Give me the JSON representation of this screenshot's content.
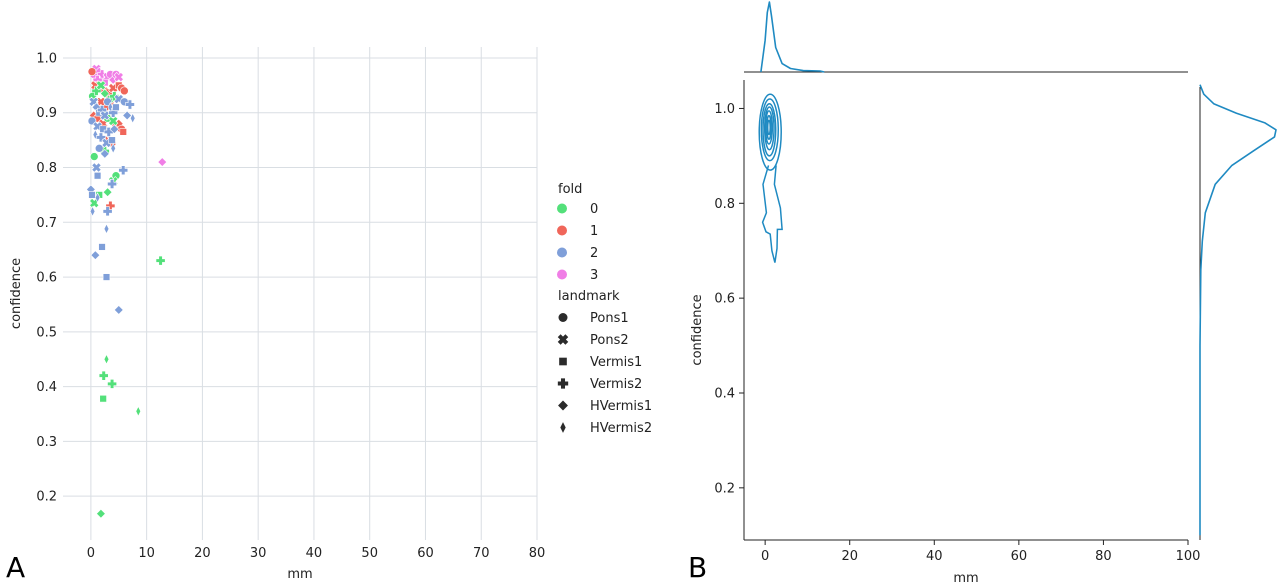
{
  "panels": {
    "a_letter": "A",
    "b_letter": "B"
  },
  "chart_data": [
    {
      "type": "scatter",
      "title": "",
      "xlabel": "mm",
      "ylabel": "confidence",
      "xlim": [
        -5,
        80
      ],
      "ylim": [
        0.12,
        1.02
      ],
      "xticks": [
        0,
        10,
        20,
        30,
        40,
        50,
        60,
        70,
        80
      ],
      "yticks": [
        0.2,
        0.3,
        0.4,
        0.5,
        0.6,
        0.7,
        0.8,
        0.9,
        1.0
      ],
      "grid": true,
      "legend": {
        "placement": "right",
        "hue_title": "fold",
        "hue_items": [
          {
            "label": "0",
            "color": "#53e07a"
          },
          {
            "label": "1",
            "color": "#f0665a"
          },
          {
            "label": "2",
            "color": "#7f9fd9"
          },
          {
            "label": "3",
            "color": "#f07ee6"
          }
        ],
        "style_title": "landmark",
        "style_items": [
          {
            "label": "Pons1",
            "marker": "circle"
          },
          {
            "label": "Pons2",
            "marker": "x"
          },
          {
            "label": "Vermis1",
            "marker": "square"
          },
          {
            "label": "Vermis2",
            "marker": "plus"
          },
          {
            "label": "HVermis1",
            "marker": "diamond"
          },
          {
            "label": "HVermis2",
            "marker": "thin-diamond"
          }
        ]
      },
      "points": [
        {
          "x": 0.5,
          "y": 0.97,
          "fold": 3,
          "lm": "circle"
        },
        {
          "x": 1.0,
          "y": 0.98,
          "fold": 3,
          "lm": "x"
        },
        {
          "x": 1.5,
          "y": 0.975,
          "fold": 3,
          "lm": "diamond"
        },
        {
          "x": 2.0,
          "y": 0.97,
          "fold": 3,
          "lm": "plus"
        },
        {
          "x": 3.0,
          "y": 0.965,
          "fold": 3,
          "lm": "x"
        },
        {
          "x": 3.5,
          "y": 0.97,
          "fold": 3,
          "lm": "circle"
        },
        {
          "x": 4.0,
          "y": 0.96,
          "fold": 3,
          "lm": "diamond"
        },
        {
          "x": 4.5,
          "y": 0.97,
          "fold": 3,
          "lm": "circle"
        },
        {
          "x": 5.0,
          "y": 0.965,
          "fold": 3,
          "lm": "x"
        },
        {
          "x": 2.5,
          "y": 0.955,
          "fold": 3,
          "lm": "square"
        },
        {
          "x": 1.2,
          "y": 0.96,
          "fold": 3,
          "lm": "plus"
        },
        {
          "x": 0.2,
          "y": 0.975,
          "fold": 1,
          "lm": "circle"
        },
        {
          "x": 0.8,
          "y": 0.95,
          "fold": 1,
          "lm": "x"
        },
        {
          "x": 1.5,
          "y": 0.945,
          "fold": 1,
          "lm": "diamond"
        },
        {
          "x": 2.5,
          "y": 0.94,
          "fold": 1,
          "lm": "circle"
        },
        {
          "x": 3.0,
          "y": 0.935,
          "fold": 1,
          "lm": "plus"
        },
        {
          "x": 4.0,
          "y": 0.945,
          "fold": 1,
          "lm": "x"
        },
        {
          "x": 5.0,
          "y": 0.95,
          "fold": 1,
          "lm": "square"
        },
        {
          "x": 5.5,
          "y": 0.945,
          "fold": 1,
          "lm": "circle"
        },
        {
          "x": 6.0,
          "y": 0.94,
          "fold": 1,
          "lm": "circle"
        },
        {
          "x": 1.8,
          "y": 0.92,
          "fold": 1,
          "lm": "x"
        },
        {
          "x": 2.8,
          "y": 0.91,
          "fold": 1,
          "lm": "diamond"
        },
        {
          "x": 3.5,
          "y": 0.92,
          "fold": 1,
          "lm": "square"
        },
        {
          "x": 0.5,
          "y": 0.895,
          "fold": 1,
          "lm": "diamond"
        },
        {
          "x": 1.2,
          "y": 0.89,
          "fold": 1,
          "lm": "circle"
        },
        {
          "x": 2.2,
          "y": 0.88,
          "fold": 1,
          "lm": "x"
        },
        {
          "x": 4.5,
          "y": 0.875,
          "fold": 1,
          "lm": "circle"
        },
        {
          "x": 5.0,
          "y": 0.88,
          "fold": 1,
          "lm": "diamond"
        },
        {
          "x": 5.5,
          "y": 0.87,
          "fold": 1,
          "lm": "circle"
        },
        {
          "x": 5.8,
          "y": 0.865,
          "fold": 1,
          "lm": "square"
        },
        {
          "x": 3.0,
          "y": 0.85,
          "fold": 1,
          "lm": "x"
        },
        {
          "x": 3.8,
          "y": 0.845,
          "fold": 1,
          "lm": "circle"
        },
        {
          "x": 3.5,
          "y": 0.73,
          "fold": 1,
          "lm": "plus"
        },
        {
          "x": 0.3,
          "y": 0.93,
          "fold": 0,
          "lm": "circle"
        },
        {
          "x": 1.0,
          "y": 0.94,
          "fold": 0,
          "lm": "plus"
        },
        {
          "x": 1.8,
          "y": 0.95,
          "fold": 0,
          "lm": "x"
        },
        {
          "x": 2.5,
          "y": 0.935,
          "fold": 0,
          "lm": "diamond"
        },
        {
          "x": 3.5,
          "y": 0.925,
          "fold": 0,
          "lm": "circle"
        },
        {
          "x": 4.2,
          "y": 0.93,
          "fold": 0,
          "lm": "plus"
        },
        {
          "x": 2.0,
          "y": 0.9,
          "fold": 0,
          "lm": "square"
        },
        {
          "x": 3.0,
          "y": 0.89,
          "fold": 0,
          "lm": "circle"
        },
        {
          "x": 4.0,
          "y": 0.885,
          "fold": 0,
          "lm": "x"
        },
        {
          "x": 0.6,
          "y": 0.82,
          "fold": 0,
          "lm": "circle"
        },
        {
          "x": 1.5,
          "y": 0.835,
          "fold": 0,
          "lm": "diamond"
        },
        {
          "x": 2.5,
          "y": 0.83,
          "fold": 0,
          "lm": "plus"
        },
        {
          "x": 4.5,
          "y": 0.785,
          "fold": 0,
          "lm": "circle"
        },
        {
          "x": 4.0,
          "y": 0.775,
          "fold": 0,
          "lm": "x"
        },
        {
          "x": 1.5,
          "y": 0.75,
          "fold": 0,
          "lm": "square"
        },
        {
          "x": 3.0,
          "y": 0.755,
          "fold": 0,
          "lm": "diamond"
        },
        {
          "x": 0.6,
          "y": 0.735,
          "fold": 0,
          "lm": "x"
        },
        {
          "x": 12.5,
          "y": 0.63,
          "fold": 0,
          "lm": "plus"
        },
        {
          "x": 2.8,
          "y": 0.45,
          "fold": 0,
          "lm": "thin-diamond"
        },
        {
          "x": 2.3,
          "y": 0.42,
          "fold": 0,
          "lm": "plus"
        },
        {
          "x": 3.8,
          "y": 0.405,
          "fold": 0,
          "lm": "plus"
        },
        {
          "x": 2.2,
          "y": 0.378,
          "fold": 0,
          "lm": "square"
        },
        {
          "x": 8.5,
          "y": 0.355,
          "fold": 0,
          "lm": "thin-diamond"
        },
        {
          "x": 1.8,
          "y": 0.168,
          "fold": 0,
          "lm": "diamond"
        },
        {
          "x": 0.5,
          "y": 0.92,
          "fold": 2,
          "lm": "x"
        },
        {
          "x": 1.0,
          "y": 0.91,
          "fold": 2,
          "lm": "diamond"
        },
        {
          "x": 1.5,
          "y": 0.9,
          "fold": 2,
          "lm": "square"
        },
        {
          "x": 2.0,
          "y": 0.905,
          "fold": 2,
          "lm": "plus"
        },
        {
          "x": 2.5,
          "y": 0.895,
          "fold": 2,
          "lm": "x"
        },
        {
          "x": 3.0,
          "y": 0.92,
          "fold": 2,
          "lm": "circle"
        },
        {
          "x": 3.5,
          "y": 0.91,
          "fold": 2,
          "lm": "thin-diamond"
        },
        {
          "x": 4.0,
          "y": 0.9,
          "fold": 2,
          "lm": "plus"
        },
        {
          "x": 4.5,
          "y": 0.91,
          "fold": 2,
          "lm": "square"
        },
        {
          "x": 5.0,
          "y": 0.925,
          "fold": 2,
          "lm": "x"
        },
        {
          "x": 6.0,
          "y": 0.92,
          "fold": 2,
          "lm": "circle"
        },
        {
          "x": 7.0,
          "y": 0.915,
          "fold": 2,
          "lm": "plus"
        },
        {
          "x": 6.5,
          "y": 0.895,
          "fold": 2,
          "lm": "diamond"
        },
        {
          "x": 7.5,
          "y": 0.89,
          "fold": 2,
          "lm": "thin-diamond"
        },
        {
          "x": 0.2,
          "y": 0.885,
          "fold": 2,
          "lm": "circle"
        },
        {
          "x": 1.2,
          "y": 0.875,
          "fold": 2,
          "lm": "x"
        },
        {
          "x": 2.2,
          "y": 0.87,
          "fold": 2,
          "lm": "square"
        },
        {
          "x": 3.2,
          "y": 0.865,
          "fold": 2,
          "lm": "plus"
        },
        {
          "x": 4.2,
          "y": 0.87,
          "fold": 2,
          "lm": "diamond"
        },
        {
          "x": 0.8,
          "y": 0.86,
          "fold": 2,
          "lm": "thin-diamond"
        },
        {
          "x": 1.8,
          "y": 0.855,
          "fold": 2,
          "lm": "plus"
        },
        {
          "x": 2.8,
          "y": 0.845,
          "fold": 2,
          "lm": "x"
        },
        {
          "x": 3.8,
          "y": 0.85,
          "fold": 2,
          "lm": "square"
        },
        {
          "x": 1.5,
          "y": 0.835,
          "fold": 2,
          "lm": "circle"
        },
        {
          "x": 2.5,
          "y": 0.825,
          "fold": 2,
          "lm": "diamond"
        },
        {
          "x": 4.0,
          "y": 0.835,
          "fold": 2,
          "lm": "thin-diamond"
        },
        {
          "x": 1.0,
          "y": 0.8,
          "fold": 2,
          "lm": "x"
        },
        {
          "x": 1.2,
          "y": 0.785,
          "fold": 2,
          "lm": "square"
        },
        {
          "x": 5.8,
          "y": 0.795,
          "fold": 2,
          "lm": "plus"
        },
        {
          "x": 3.8,
          "y": 0.77,
          "fold": 2,
          "lm": "plus"
        },
        {
          "x": 0.0,
          "y": 0.76,
          "fold": 2,
          "lm": "diamond"
        },
        {
          "x": 0.2,
          "y": 0.75,
          "fold": 2,
          "lm": "square"
        },
        {
          "x": 1.2,
          "y": 0.745,
          "fold": 2,
          "lm": "thin-diamond"
        },
        {
          "x": 3.0,
          "y": 0.72,
          "fold": 2,
          "lm": "plus"
        },
        {
          "x": 0.3,
          "y": 0.72,
          "fold": 2,
          "lm": "thin-diamond"
        },
        {
          "x": 2.8,
          "y": 0.688,
          "fold": 2,
          "lm": "thin-diamond"
        },
        {
          "x": 2.0,
          "y": 0.655,
          "fold": 2,
          "lm": "square"
        },
        {
          "x": 0.8,
          "y": 0.64,
          "fold": 2,
          "lm": "diamond"
        },
        {
          "x": 2.8,
          "y": 0.6,
          "fold": 2,
          "lm": "square"
        },
        {
          "x": 5.0,
          "y": 0.54,
          "fold": 2,
          "lm": "diamond"
        },
        {
          "x": 12.8,
          "y": 0.81,
          "fold": 3,
          "lm": "diamond"
        }
      ]
    },
    {
      "type": "kde-joint",
      "title": "",
      "xlabel": "mm",
      "ylabel": "confidence",
      "xlim": [
        -5,
        100
      ],
      "ylim": [
        0.09,
        1.06
      ],
      "xticks": [
        0,
        20,
        40,
        60,
        80,
        100
      ],
      "yticks": [
        0.2,
        0.4,
        0.6,
        0.8,
        1.0
      ],
      "color": "#1f8ac2",
      "grid": false,
      "contours": [
        {
          "cx": 1.2,
          "cy": 0.95,
          "rx": 2.6,
          "ry": 0.08,
          "note": "outer"
        },
        {
          "cx": 1.1,
          "cy": 0.955,
          "rx": 2.0,
          "ry": 0.065
        },
        {
          "cx": 1.0,
          "cy": 0.955,
          "rx": 1.5,
          "ry": 0.055
        },
        {
          "cx": 1.0,
          "cy": 0.958,
          "rx": 1.1,
          "ry": 0.045
        },
        {
          "cx": 0.9,
          "cy": 0.96,
          "rx": 0.8,
          "ry": 0.035
        },
        {
          "cx": 0.9,
          "cy": 0.96,
          "rx": 0.5,
          "ry": 0.025
        },
        {
          "cx": 0.9,
          "cy": 0.96,
          "rx": 0.3,
          "ry": 0.015
        }
      ],
      "marginal_x": [
        {
          "x": -1,
          "d": 0.0
        },
        {
          "x": 0,
          "d": 0.45
        },
        {
          "x": 0.5,
          "d": 0.85
        },
        {
          "x": 1,
          "d": 1.0
        },
        {
          "x": 1.5,
          "d": 0.8
        },
        {
          "x": 2.5,
          "d": 0.35
        },
        {
          "x": 4,
          "d": 0.12
        },
        {
          "x": 6,
          "d": 0.05
        },
        {
          "x": 9,
          "d": 0.02
        },
        {
          "x": 13,
          "d": 0.015
        },
        {
          "x": 14,
          "d": 0.0
        }
      ],
      "marginal_y": [
        {
          "y": 0.1,
          "d": 0.0
        },
        {
          "y": 0.5,
          "d": 0.0
        },
        {
          "y": 0.66,
          "d": 0.01
        },
        {
          "y": 0.72,
          "d": 0.03
        },
        {
          "y": 0.78,
          "d": 0.07
        },
        {
          "y": 0.84,
          "d": 0.2
        },
        {
          "y": 0.88,
          "d": 0.42
        },
        {
          "y": 0.91,
          "d": 0.7
        },
        {
          "y": 0.94,
          "d": 0.98
        },
        {
          "y": 0.955,
          "d": 1.0
        },
        {
          "y": 0.97,
          "d": 0.85
        },
        {
          "y": 0.99,
          "d": 0.48
        },
        {
          "y": 1.01,
          "d": 0.18
        },
        {
          "y": 1.03,
          "d": 0.05
        },
        {
          "y": 1.05,
          "d": 0.0
        }
      ]
    }
  ]
}
